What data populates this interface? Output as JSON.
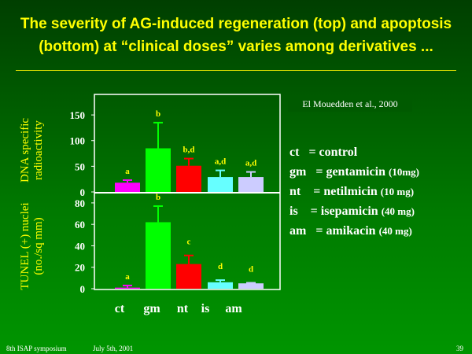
{
  "title": "The severity of AG-induced regeneration (top) and apoptosis (bottom) at “clinical doses” varies among derivatives ...",
  "citation": "El Mouedden et al., 2000",
  "legend": [
    {
      "abbr": "ct",
      "name": "= control",
      "dose": ""
    },
    {
      "abbr": "gm",
      "name": "= gentamicin",
      "dose": "(10mg)"
    },
    {
      "abbr": "nt",
      "name": " = netilmicin",
      "dose": "(10 mg)"
    },
    {
      "abbr": "is",
      "name": " = isepamicin",
      "dose": "(40 mg)"
    },
    {
      "abbr": "am",
      "name": "= amikacin",
      "dose": "(40 mg)"
    }
  ],
  "footer": {
    "left": "8th ISAP symposium",
    "date": "July 5th, 2001",
    "page": "39"
  },
  "colors": [
    "#ff00ff",
    "#00ff00",
    "#ff0000",
    "#66ffff",
    "#ccccff"
  ],
  "chart_data": [
    {
      "type": "bar",
      "title": "",
      "ylabel": "DNA specific radioactivity",
      "categories": [
        "ct",
        "gm",
        "nt",
        "is",
        "am"
      ],
      "values": [
        18,
        85,
        51,
        29,
        29
      ],
      "error_upper": [
        23,
        135,
        65,
        42,
        39
      ],
      "labels": [
        "a",
        "b",
        "b,d",
        "a,d",
        "a,d"
      ],
      "ylim": [
        0,
        190
      ],
      "yticks": [
        0,
        50,
        100,
        150
      ]
    },
    {
      "type": "bar",
      "title": "",
      "ylabel": "TUNEL (+) nuclei (no./sq mm)",
      "categories": [
        "ct",
        "gm",
        "nt",
        "is",
        "am"
      ],
      "values": [
        1,
        62,
        23,
        6,
        5
      ],
      "error_upper": [
        3,
        77,
        31,
        8,
        5.5
      ],
      "labels": [
        "a",
        "b",
        "c",
        "d",
        "d"
      ],
      "ylim": [
        0,
        88
      ],
      "yticks": [
        0,
        20,
        40,
        60,
        80
      ]
    }
  ]
}
